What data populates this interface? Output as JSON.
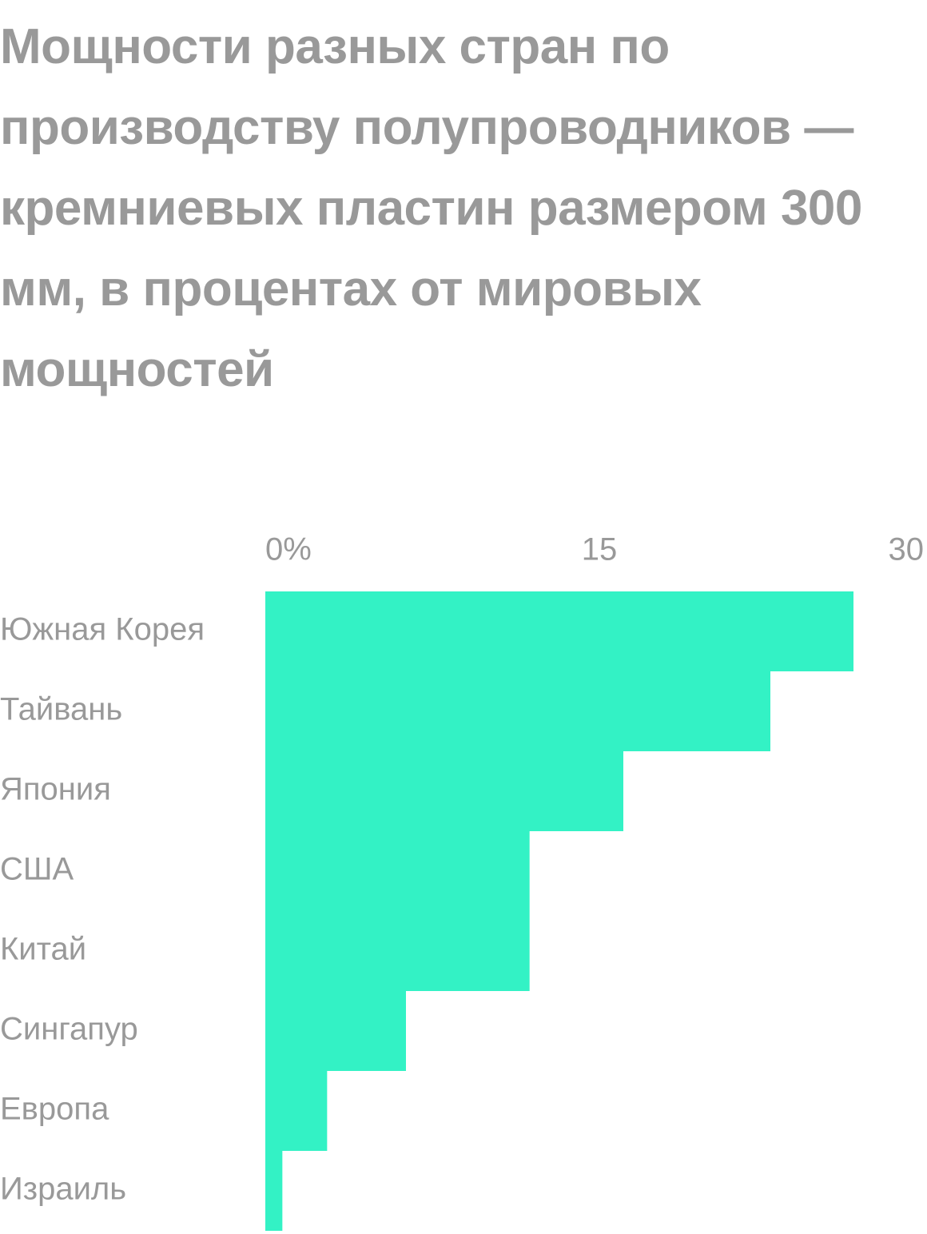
{
  "chart_data": {
    "type": "bar",
    "orientation": "horizontal",
    "title": "Мощности разных стран по производству полупроводников — кремниевых пластин размером 300 мм, в процентах от мировых мощностей",
    "categories": [
      "Южная Корея",
      "Тайвань",
      "Япония",
      "США",
      "Китай",
      "Сингапур",
      "Европа",
      "Израиль"
    ],
    "values": [
      27.6,
      23.7,
      16.8,
      12.4,
      12.4,
      6.6,
      2.9,
      0.8
    ],
    "color": "#33f2c5",
    "xlim": [
      0,
      30
    ],
    "xticks": [
      {
        "value": 0,
        "label": "0%"
      },
      15,
      30
    ]
  }
}
